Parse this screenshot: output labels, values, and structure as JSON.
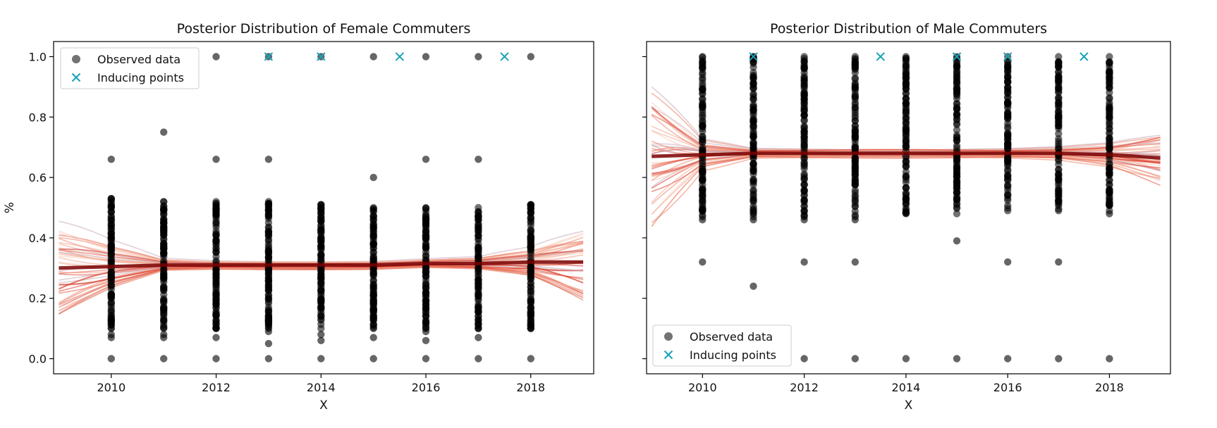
{
  "chart_data": [
    {
      "type": "scatter",
      "title": "Posterior Distribution of Female Commuters",
      "xlabel": "X",
      "ylabel": "%",
      "xlim": [
        2008.9,
        2019.2
      ],
      "ylim": [
        -0.05,
        1.05
      ],
      "xticks": [
        2010,
        2012,
        2014,
        2016,
        2018
      ],
      "yticks": [
        0.0,
        0.2,
        0.4,
        0.6,
        0.8,
        1.0
      ],
      "ytick_labels": [
        "0.0",
        "0.2",
        "0.4",
        "0.6",
        "0.8",
        "1.0"
      ],
      "show_ytick_labels": true,
      "grid": false,
      "legend": {
        "placement": "upper-left",
        "entries": [
          "Observed data",
          "Inducing points"
        ]
      },
      "colors": {
        "observed": "#000000",
        "inducing": "#17a2b8",
        "mean_line": "#7a0000",
        "band": "#e8664a"
      },
      "series": [
        {
          "name": "Observed data",
          "columns": [
            {
              "x": 2010,
              "dense_range": [
                0.1,
                0.53
              ],
              "points": [
                0.0,
                0.07,
                0.08,
                0.12,
                0.66
              ]
            },
            {
              "x": 2011,
              "dense_range": [
                0.1,
                0.52
              ],
              "points": [
                0.0,
                0.07,
                0.08,
                0.75
              ]
            },
            {
              "x": 2012,
              "dense_range": [
                0.1,
                0.52
              ],
              "points": [
                0.0,
                0.07,
                0.66,
                1.0
              ]
            },
            {
              "x": 2013,
              "dense_range": [
                0.1,
                0.52
              ],
              "points": [
                0.0,
                0.05,
                0.09,
                0.66,
                1.0
              ]
            },
            {
              "x": 2014,
              "dense_range": [
                0.1,
                0.51
              ],
              "points": [
                0.0,
                0.06,
                0.08,
                1.0
              ]
            },
            {
              "x": 2015,
              "dense_range": [
                0.1,
                0.5
              ],
              "points": [
                0.0,
                0.07,
                0.6,
                1.0
              ]
            },
            {
              "x": 2016,
              "dense_range": [
                0.1,
                0.5
              ],
              "points": [
                0.0,
                0.06,
                0.09,
                0.12,
                0.66,
                1.0
              ]
            },
            {
              "x": 2017,
              "dense_range": [
                0.1,
                0.5
              ],
              "points": [
                0.0,
                0.07,
                0.66,
                1.0
              ]
            },
            {
              "x": 2018,
              "dense_range": [
                0.1,
                0.51
              ],
              "points": [
                0.0,
                0.1,
                1.0
              ]
            }
          ]
        },
        {
          "name": "Inducing points",
          "x": [
            2013,
            2014,
            2015.5,
            2017.5
          ],
          "y": [
            1.0,
            1.0,
            1.0,
            1.0
          ]
        },
        {
          "name": "posterior",
          "x": [
            2009.0,
            2010.0,
            2011.0,
            2012.0,
            2013.0,
            2014.0,
            2015.0,
            2016.0,
            2017.0,
            2018.0,
            2019.0
          ],
          "mean": [
            0.3,
            0.305,
            0.31,
            0.31,
            0.31,
            0.31,
            0.31,
            0.315,
            0.315,
            0.32,
            0.32
          ],
          "spread": [
            0.17,
            0.08,
            0.02,
            0.015,
            0.015,
            0.015,
            0.015,
            0.015,
            0.02,
            0.05,
            0.13
          ]
        }
      ]
    },
    {
      "type": "scatter",
      "title": "Posterior Distribution of Male Commuters",
      "xlabel": "X",
      "ylabel": "",
      "xlim": [
        2008.9,
        2019.2
      ],
      "ylim": [
        -0.05,
        1.05
      ],
      "xticks": [
        2010,
        2012,
        2014,
        2016,
        2018
      ],
      "yticks": [
        0.0,
        0.2,
        0.4,
        0.6,
        0.8,
        1.0
      ],
      "ytick_labels": [
        "",
        "",
        "",
        "",
        "",
        ""
      ],
      "show_ytick_labels": false,
      "grid": false,
      "legend": {
        "placement": "lower-left",
        "entries": [
          "Observed data",
          "Inducing points"
        ]
      },
      "colors": {
        "observed": "#000000",
        "inducing": "#17a2b8",
        "mean_line": "#7a0000",
        "band": "#e8664a"
      },
      "series": [
        {
          "name": "Observed data",
          "columns": [
            {
              "x": 2010,
              "dense_range": [
                0.47,
                1.0
              ],
              "points": [
                0.0,
                0.32,
                0.46
              ]
            },
            {
              "x": 2011,
              "dense_range": [
                0.47,
                1.0
              ],
              "points": [
                0.24,
                0.46
              ]
            },
            {
              "x": 2012,
              "dense_range": [
                0.47,
                1.0
              ],
              "points": [
                0.0,
                0.32,
                0.46
              ]
            },
            {
              "x": 2013,
              "dense_range": [
                0.47,
                1.0
              ],
              "points": [
                0.0,
                0.32,
                0.46
              ]
            },
            {
              "x": 2014,
              "dense_range": [
                0.48,
                1.0
              ],
              "points": [
                0.0,
                0.93
              ]
            },
            {
              "x": 2015,
              "dense_range": [
                0.48,
                1.0
              ],
              "points": [
                0.0,
                0.39
              ]
            },
            {
              "x": 2016,
              "dense_range": [
                0.49,
                1.0
              ],
              "points": [
                0.0,
                0.32,
                0.93
              ]
            },
            {
              "x": 2017,
              "dense_range": [
                0.49,
                1.0
              ],
              "points": [
                0.0,
                0.32,
                0.93
              ]
            },
            {
              "x": 2018,
              "dense_range": [
                0.49,
                1.0
              ],
              "points": [
                0.0,
                0.48,
                0.9
              ]
            }
          ]
        },
        {
          "name": "Inducing points",
          "x": [
            2011,
            2013.5,
            2015,
            2016,
            2017.5
          ],
          "y": [
            1.0,
            1.0,
            1.0,
            1.0,
            1.0
          ]
        },
        {
          "name": "posterior",
          "x": [
            2009.0,
            2010.0,
            2011.0,
            2012.0,
            2013.0,
            2014.0,
            2015.0,
            2016.0,
            2017.0,
            2018.0,
            2019.0
          ],
          "mean": [
            0.67,
            0.675,
            0.68,
            0.68,
            0.68,
            0.68,
            0.68,
            0.68,
            0.68,
            0.675,
            0.665
          ],
          "spread": [
            0.25,
            0.05,
            0.015,
            0.015,
            0.015,
            0.015,
            0.015,
            0.015,
            0.02,
            0.04,
            0.09
          ]
        }
      ]
    }
  ]
}
